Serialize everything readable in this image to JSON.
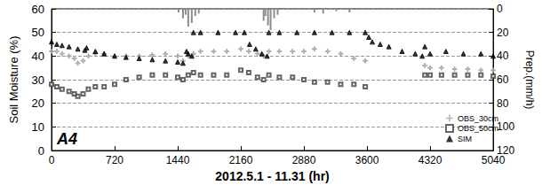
{
  "chart_data": {
    "type": "scatter",
    "x_label": "2012.5.1 - 11.31 (hr)",
    "y_label": "Soil Moisture (%)",
    "y2_label": "Prep.(mm/h)",
    "annotations": [
      "A4"
    ],
    "xlim": [
      0,
      5040
    ],
    "xticks": [
      0,
      720,
      1440,
      2160,
      2880,
      3600,
      4320,
      5040
    ],
    "ylim": [
      0,
      60
    ],
    "yticks": [
      0,
      10,
      20,
      30,
      40,
      50,
      60
    ],
    "y2lim": [
      120,
      0
    ],
    "y2ticks": [
      0,
      20,
      40,
      60,
      80,
      100,
      120
    ],
    "grid": true,
    "legend": "lower right",
    "series": [
      {
        "name": "OBS_30cm",
        "color": "#a6a6a6",
        "marker": "plus",
        "x": [
          0,
          60,
          120,
          200,
          260,
          300,
          360,
          420,
          500,
          600,
          720,
          850,
          1000,
          1150,
          1300,
          1440,
          1500,
          1560,
          1620,
          1700,
          1850,
          2000,
          2160,
          2250,
          2350,
          2420,
          2480,
          2600,
          2750,
          2880,
          3000,
          3150,
          3300,
          3450,
          3580,
          4260,
          4320,
          4450,
          4600,
          4750,
          4900,
          5040
        ],
        "values": [
          42,
          42,
          41,
          40,
          39,
          37,
          38,
          40,
          41,
          41,
          40,
          40,
          40,
          40.5,
          41,
          40,
          38,
          40,
          41,
          42,
          42,
          42,
          43,
          42,
          41,
          40,
          42,
          42,
          42,
          42,
          43,
          42,
          41,
          39,
          38,
          36,
          35,
          35,
          34.5,
          34.5,
          34,
          34
        ]
      },
      {
        "name": "OBS_50cm",
        "color": "#404040",
        "marker": "square",
        "x": [
          0,
          60,
          120,
          200,
          260,
          300,
          360,
          420,
          500,
          600,
          720,
          850,
          1000,
          1150,
          1300,
          1440,
          1500,
          1560,
          1620,
          1700,
          1850,
          2000,
          2160,
          2250,
          2350,
          2420,
          2480,
          2600,
          2750,
          2880,
          3000,
          3150,
          3300,
          3450,
          3580,
          4260,
          4320,
          4450,
          4600,
          4750,
          4900,
          5040
        ],
        "values": [
          28,
          27,
          26,
          25,
          24,
          23,
          24,
          26,
          27,
          27,
          28,
          30,
          31,
          32,
          32,
          31,
          30,
          32,
          33,
          32,
          32,
          32,
          34,
          33,
          31,
          30,
          32,
          31,
          31,
          30,
          29,
          29,
          28,
          28,
          27,
          32,
          32,
          32,
          32,
          32,
          32,
          31.5
        ]
      },
      {
        "name": "SIM",
        "color": "#000000",
        "marker": "triangle",
        "x": [
          0,
          60,
          120,
          200,
          300,
          380,
          400,
          500,
          600,
          720,
          850,
          1000,
          1150,
          1300,
          1440,
          1500,
          1540,
          1560,
          1600,
          1620,
          1700,
          1900,
          2100,
          2200,
          2260,
          2330,
          2400,
          2460,
          2480,
          2600,
          2800,
          3000,
          3200,
          3400,
          3580,
          3620,
          3660,
          3750,
          3850,
          4000,
          4150,
          4230,
          4260,
          4320,
          4500,
          4700,
          4900,
          5040
        ],
        "values": [
          46,
          45,
          44.5,
          44,
          43,
          42.5,
          43.5,
          42,
          41,
          40,
          39.5,
          39,
          38.5,
          38,
          37.5,
          37,
          42,
          41,
          40,
          50,
          50,
          50,
          50,
          50,
          45,
          43,
          41,
          40,
          50,
          50,
          50,
          50,
          50,
          50,
          50,
          48,
          46,
          45,
          44,
          42,
          41,
          40,
          44,
          41,
          42,
          41,
          41,
          40
        ]
      },
      {
        "type": "bar",
        "axis": "y2",
        "color": "#8c8c8c",
        "x": [
          1450,
          1500,
          1530,
          1560,
          1600,
          1640,
          1680,
          2420,
          2440,
          2470,
          2500,
          2540,
          2580,
          3000,
          3100,
          3250,
          3400
        ],
        "values": [
          3,
          8,
          5,
          15,
          12,
          6,
          4,
          10,
          6,
          14,
          18,
          8,
          5,
          3,
          4,
          2,
          3
        ]
      }
    ]
  }
}
